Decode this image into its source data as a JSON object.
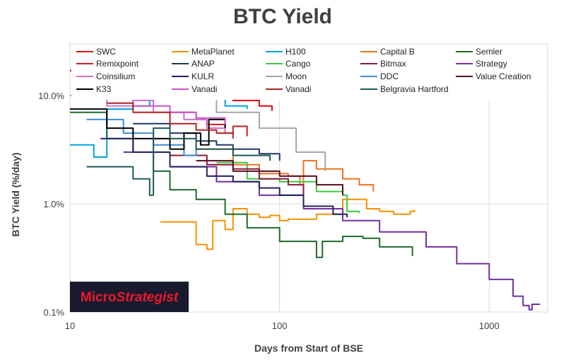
{
  "chart_data": {
    "type": "line",
    "title": "BTC Yield",
    "xlabel": "Days from Start of BSE",
    "ylabel": "BTC Yield (%/day)",
    "xscale": "log",
    "yscale": "log",
    "xlim": [
      10,
      1900
    ],
    "ylim": [
      0.1,
      30
    ],
    "xticks": [
      10,
      100,
      1000
    ],
    "xtick_labels": [
      "10",
      "100",
      "1000"
    ],
    "yticks": [
      0.1,
      1.0,
      10.0
    ],
    "ytick_labels": [
      "0.1%",
      "1.0%",
      "10.0%"
    ],
    "grid": true,
    "legend_position": "top",
    "watermark": "MicroStrategist",
    "series": [
      {
        "name": "SWC",
        "color": "#e3000f",
        "points": [
          [
            10,
            17
          ],
          [
            18,
            13
          ],
          [
            25,
            13
          ],
          [
            30,
            12
          ],
          [
            40,
            10.5
          ],
          [
            60,
            9
          ],
          [
            80,
            8
          ],
          [
            92,
            7.2
          ]
        ]
      },
      {
        "name": "MetaPlanet",
        "color": "#f39200",
        "points": [
          [
            27,
            0.68
          ],
          [
            40,
            0.42
          ],
          [
            45,
            0.38
          ],
          [
            48,
            0.7
          ],
          [
            55,
            0.58
          ],
          [
            60,
            0.9
          ],
          [
            70,
            0.8
          ],
          [
            80,
            0.75
          ],
          [
            90,
            0.78
          ],
          [
            100,
            0.7
          ],
          [
            110,
            0.72
          ],
          [
            150,
            0.8
          ],
          [
            200,
            1.1
          ],
          [
            260,
            0.9
          ],
          [
            300,
            0.85
          ],
          [
            350,
            0.8
          ],
          [
            420,
            0.85
          ],
          [
            440,
            0.88
          ]
        ]
      },
      {
        "name": "H100",
        "color": "#00a2e0",
        "points": [
          [
            10,
            3.5
          ],
          [
            13,
            2.7
          ],
          [
            15,
            7.5
          ],
          [
            20,
            8
          ],
          [
            24,
            13.5
          ],
          [
            30,
            12
          ],
          [
            40,
            10
          ],
          [
            55,
            8
          ],
          [
            70,
            7.5
          ]
        ]
      },
      {
        "name": "Capital B",
        "color": "#f07020",
        "points": [
          [
            40,
            3.2
          ],
          [
            60,
            2.3
          ],
          [
            80,
            1.9
          ],
          [
            110,
            1.8
          ],
          [
            125,
            1.5
          ],
          [
            130,
            2.5
          ],
          [
            150,
            2.1
          ],
          [
            200,
            1.7
          ],
          [
            240,
            1.5
          ],
          [
            280,
            1.3
          ]
        ]
      },
      {
        "name": "Semler",
        "color": "#1a6a2a",
        "points": [
          [
            10,
            7
          ],
          [
            15,
            4
          ],
          [
            20,
            3
          ],
          [
            25,
            2
          ],
          [
            30,
            1.35
          ],
          [
            40,
            1.1
          ],
          [
            55,
            0.8
          ],
          [
            70,
            0.6
          ],
          [
            100,
            0.45
          ],
          [
            150,
            0.32
          ],
          [
            160,
            0.45
          ],
          [
            200,
            0.5
          ],
          [
            250,
            0.48
          ],
          [
            300,
            0.4
          ],
          [
            430,
            0.33
          ]
        ]
      },
      {
        "name": "Remixpoint",
        "color": "#c81e1e",
        "points": [
          [
            30,
            7
          ],
          [
            40,
            6
          ],
          [
            45,
            5.4
          ],
          [
            55,
            4.5
          ],
          [
            60,
            5.2
          ],
          [
            70,
            4.2
          ]
        ]
      },
      {
        "name": "ANAP",
        "color": "#1f3864",
        "points": [
          [
            20,
            5.5
          ],
          [
            30,
            4.5
          ],
          [
            40,
            3.8
          ],
          [
            50,
            3.5
          ],
          [
            60,
            3.2
          ],
          [
            80,
            2.9
          ],
          [
            100,
            2.5
          ]
        ]
      },
      {
        "name": "Cango",
        "color": "#3cc83c",
        "points": [
          [
            50,
            2.4
          ],
          [
            70,
            1.7
          ],
          [
            100,
            1.6
          ],
          [
            150,
            1.3
          ],
          [
            200,
            1.2
          ],
          [
            210,
            0.85
          ],
          [
            240,
            0.82
          ]
        ]
      },
      {
        "name": "Bitmax",
        "color": "#8b1a3a",
        "points": [
          [
            30,
            2.8
          ],
          [
            45,
            2.3
          ],
          [
            60,
            2.1
          ],
          [
            80,
            1.7
          ],
          [
            110,
            1.5
          ],
          [
            130,
            1.0
          ]
        ]
      },
      {
        "name": "Strategy",
        "color": "#7030a0",
        "points": [
          [
            18,
            3
          ],
          [
            30,
            2.2
          ],
          [
            50,
            1.6
          ],
          [
            80,
            1.2
          ],
          [
            130,
            0.9
          ],
          [
            200,
            0.7
          ],
          [
            300,
            0.55
          ],
          [
            500,
            0.4
          ],
          [
            700,
            0.28
          ],
          [
            1000,
            0.2
          ],
          [
            1300,
            0.14
          ],
          [
            1450,
            0.115
          ],
          [
            1550,
            0.105
          ],
          [
            1600,
            0.118
          ],
          [
            1750,
            0.118
          ]
        ]
      },
      {
        "name": "Coinsilium",
        "color": "#d46fc8",
        "points": [
          [
            10,
            10
          ],
          [
            15,
            8
          ],
          [
            20,
            9
          ],
          [
            25,
            7
          ],
          [
            35,
            6
          ],
          [
            45,
            5
          ],
          [
            55,
            4.5
          ]
        ]
      },
      {
        "name": "KULR",
        "color": "#202060",
        "points": [
          [
            14,
            4
          ],
          [
            20,
            3
          ],
          [
            30,
            2.2
          ],
          [
            45,
            1.8
          ],
          [
            60,
            1.6
          ],
          [
            80,
            1.4
          ],
          [
            100,
            1.2
          ],
          [
            130,
            0.95
          ],
          [
            180,
            0.8
          ],
          [
            210,
            0.75
          ]
        ]
      },
      {
        "name": "Moon",
        "color": "#a6a6a6",
        "points": [
          [
            13,
            16
          ],
          [
            20,
            12
          ],
          [
            30,
            9.5
          ],
          [
            50,
            7
          ],
          [
            80,
            5
          ],
          [
            120,
            3
          ],
          [
            165,
            2
          ]
        ]
      },
      {
        "name": "DDC",
        "color": "#3f8fd8",
        "points": [
          [
            12,
            6
          ],
          [
            18,
            4.5
          ],
          [
            25,
            3.5
          ],
          [
            35,
            2.8
          ],
          [
            40,
            3.5
          ]
        ]
      },
      {
        "name": "Value Creation",
        "color": "#5c0a1e",
        "points": [
          [
            40,
            2.5
          ],
          [
            60,
            2
          ],
          [
            100,
            1.8
          ],
          [
            150,
            1.5
          ],
          [
            200,
            1.2
          ]
        ]
      },
      {
        "name": "K33",
        "color": "#000000",
        "points": [
          [
            10,
            7.5
          ],
          [
            15,
            5
          ],
          [
            20,
            4
          ],
          [
            30,
            3.2
          ],
          [
            35,
            4.5
          ],
          [
            42,
            3.5
          ],
          [
            46,
            6
          ],
          [
            55,
            5
          ]
        ]
      },
      {
        "name": "Vanadi",
        "color": "#cc55cc",
        "points": [
          [
            12,
            10
          ],
          [
            20,
            8
          ],
          [
            30,
            7
          ],
          [
            40,
            6.2
          ],
          [
            55,
            5.4
          ]
        ]
      },
      {
        "name": "Vanadi",
        "color": "#b22222",
        "points": [
          [
            15,
            8.5
          ],
          [
            20,
            7
          ],
          [
            30,
            5.5
          ],
          [
            40,
            4.8
          ],
          [
            50,
            4.5
          ],
          [
            60,
            4.0
          ]
        ]
      },
      {
        "name": "Belgravia Hartford",
        "color": "#1e5a5a",
        "points": [
          [
            12,
            2.2
          ],
          [
            20,
            1.7
          ],
          [
            24,
            1.2
          ],
          [
            25,
            5
          ],
          [
            30,
            4
          ],
          [
            40,
            3.2
          ],
          [
            60,
            2.8
          ],
          [
            90,
            2.5
          ]
        ]
      }
    ]
  }
}
